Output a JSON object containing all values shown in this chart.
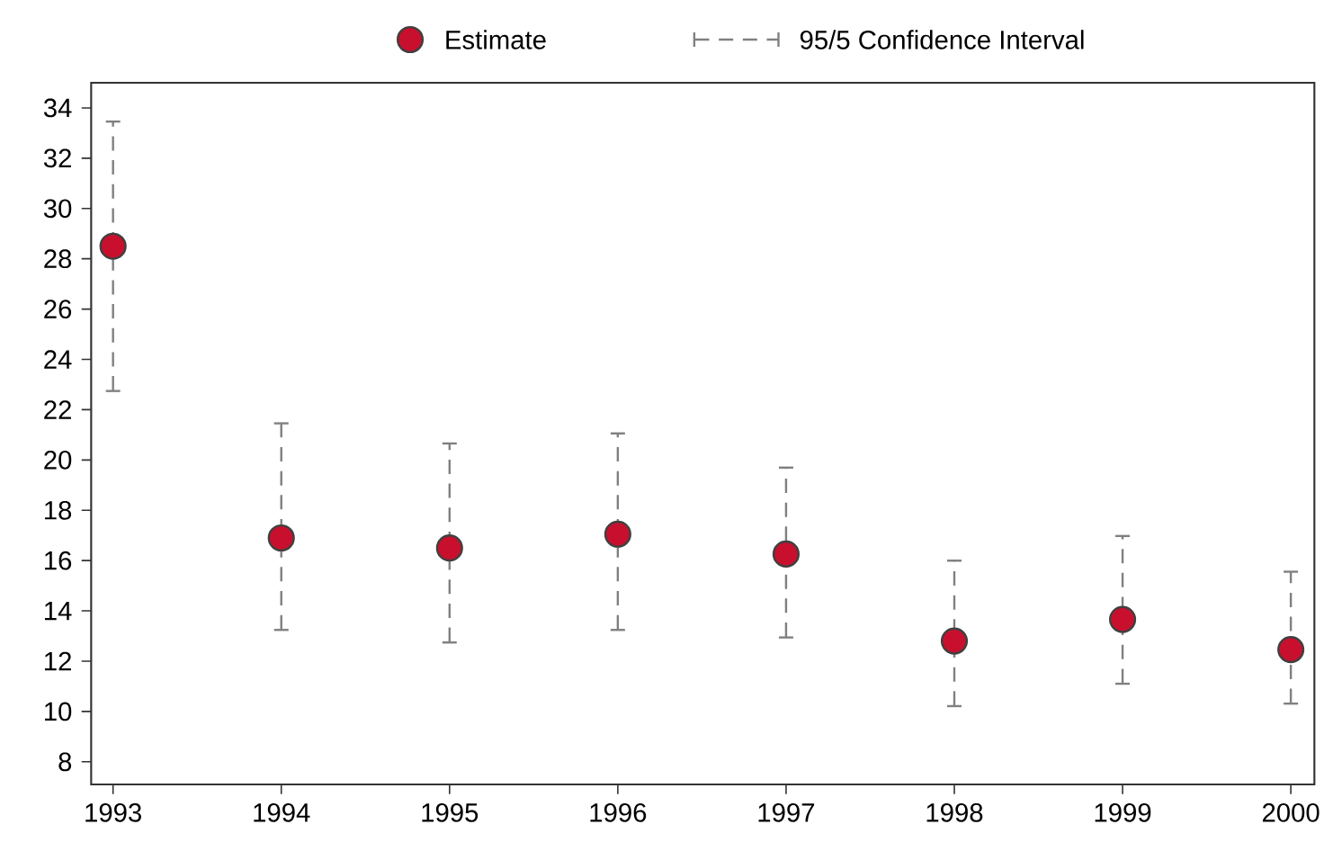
{
  "chart_data": {
    "type": "scatter",
    "x": [
      1993,
      1994,
      1995,
      1996,
      1997,
      1998,
      1999,
      2000
    ],
    "series": [
      {
        "name": "Estimate",
        "color": "#c8102e",
        "values": [
          28.5,
          16.9,
          16.5,
          17.05,
          16.26,
          12.8,
          13.66,
          12.46
        ],
        "errors": [
          [
            22.7,
            33.5
          ],
          [
            13.2,
            21.5
          ],
          [
            12.7,
            20.7
          ],
          [
            13.2,
            21.1
          ],
          [
            12.9,
            19.74
          ],
          [
            10.17,
            16.04
          ],
          [
            11.06,
            17.02
          ],
          [
            10.27,
            15.6
          ]
        ]
      }
    ],
    "annotations": [
      "95/5 Confidence Interval"
    ],
    "xlim": [
      1992.87,
      2000.14
    ],
    "ylim": [
      7.1,
      35
    ],
    "xticks": [
      1993,
      1994,
      1995,
      1996,
      1997,
      1998,
      1999,
      2000
    ],
    "yticks": [
      8,
      10,
      12,
      14,
      16,
      18,
      20,
      22,
      24,
      26,
      28,
      30,
      32,
      34
    ],
    "marker": "circle",
    "legend": "top",
    "grid": false
  }
}
